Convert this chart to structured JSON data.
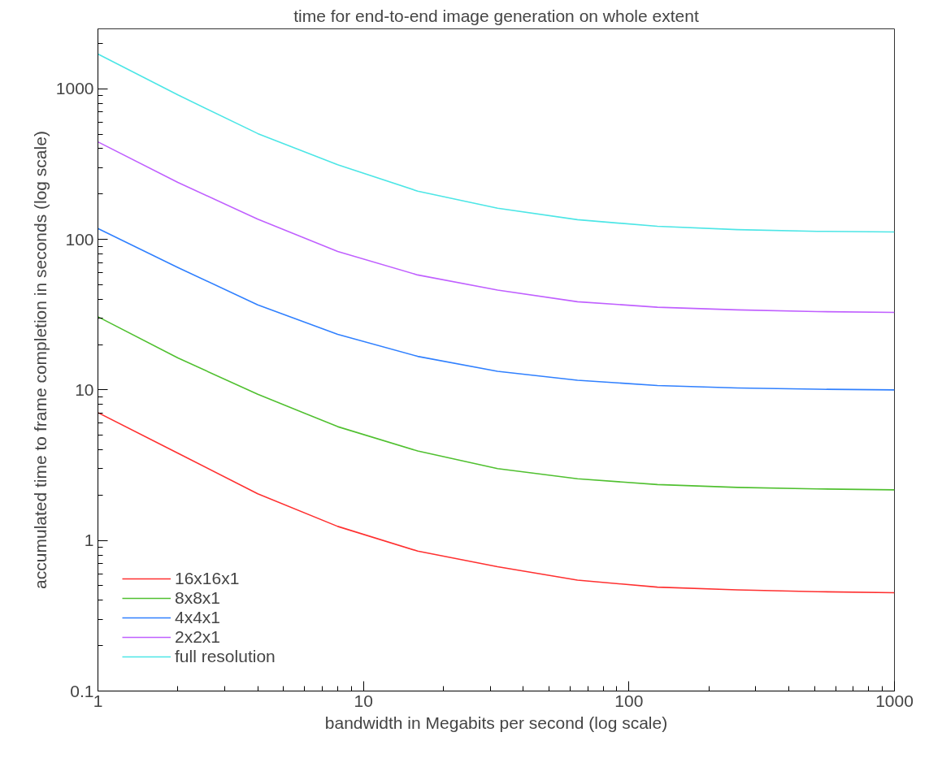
{
  "chart_data": {
    "type": "line",
    "title": "time for end-to-end image generation on whole extent",
    "xlabel": "bandwidth in Megabits per second (log scale)",
    "ylabel": "accumulated time to frame completion in seconds (log scale)",
    "x": [
      1,
      2,
      4,
      8,
      16,
      32,
      64,
      128,
      256,
      512,
      1000
    ],
    "series": [
      {
        "name": "16x16x1",
        "color": "#ff3030",
        "values": [
          7.06,
          3.8,
          2.04,
          1.24,
          0.85,
          0.67,
          0.545,
          0.49,
          0.47,
          0.457,
          0.45
        ]
      },
      {
        "name": "8x8x1",
        "color": "#50c030",
        "values": [
          30.6,
          16.3,
          9.35,
          5.7,
          3.93,
          3.0,
          2.57,
          2.35,
          2.25,
          2.2,
          2.17
        ]
      },
      {
        "name": "4x4x1",
        "color": "#3080ff",
        "values": [
          118,
          65,
          36.7,
          23.4,
          16.7,
          13.3,
          11.6,
          10.7,
          10.3,
          10.1,
          10.0
        ]
      },
      {
        "name": "2x2x1",
        "color": "#c060ff",
        "values": [
          444,
          239,
          136,
          83,
          58,
          46,
          38.5,
          35.4,
          34,
          33.1,
          32.7
        ]
      },
      {
        "name": "full resolution",
        "color": "#4de6e6",
        "values": [
          1700,
          910,
          504,
          313,
          209,
          161,
          135,
          122,
          116,
          113,
          112
        ]
      }
    ],
    "log": "xy",
    "xlim": [
      1,
      1000
    ],
    "ylim": [
      0.1,
      2500
    ],
    "xticks": [
      1,
      10,
      100,
      1000
    ],
    "yticks": [
      0.1,
      1,
      10,
      100,
      1000
    ],
    "grid": false,
    "legend": "bottom left",
    "marker": "none",
    "line_style": "solid"
  }
}
